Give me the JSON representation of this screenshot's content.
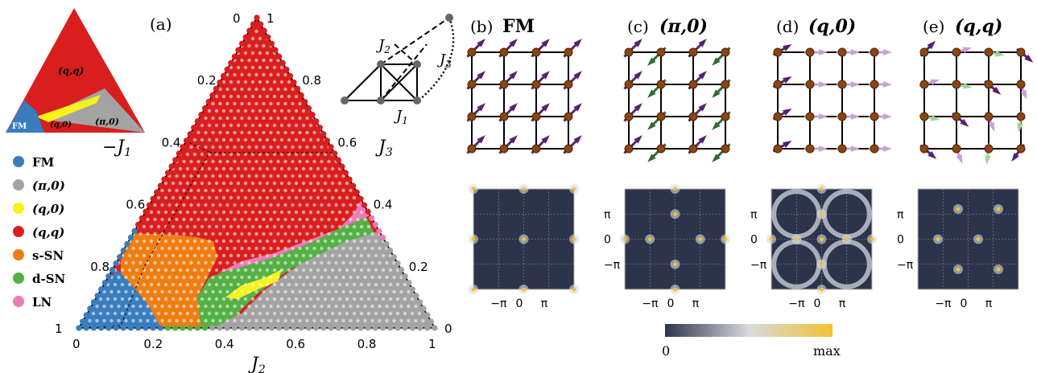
{
  "colors": {
    "FM": "#3a7dbf",
    "pi0": "#a3a3a3",
    "q0": "#f6f21a",
    "qq": "#d91e1e",
    "sSN": "#ee7d12",
    "dSN": "#55b046",
    "LN": "#ee7ab6",
    "cmap_low": "#2b344a",
    "cmap_mid": "#d9d9e0",
    "cmap_high": "#f2c230",
    "spin_purple": "#55226e",
    "spin_light": "#c8a0d6",
    "spin_green": "#2e6b35",
    "spin_lightgreen": "#9fd39a",
    "site": "#8b4513"
  },
  "legend": {
    "items": [
      {
        "key": "FM",
        "label": "FM"
      },
      {
        "key": "pi0",
        "label": "(π,0)"
      },
      {
        "key": "q0",
        "label": "(q,0)"
      },
      {
        "key": "qq",
        "label": "(q,q)"
      },
      {
        "key": "sSN",
        "label": "s-SN"
      },
      {
        "key": "dSN",
        "label": "d-SN"
      },
      {
        "key": "LN",
        "label": "LN"
      }
    ]
  },
  "inset": {
    "labels": {
      "qq": "(q,q)",
      "FM": "FM",
      "q0": "(q,0)",
      "pi0": "(π,0)"
    },
    "lattice_labels": {
      "J1": "J",
      "J2": "J",
      "J3": "J",
      "sub1": "1",
      "sub2": "2",
      "sub3": "3"
    }
  },
  "chart_data": [
    {
      "type": "ternary-phase-diagram",
      "panel_label": "(a)",
      "axis_labels": {
        "bottom": "J",
        "bottom_sub": "2",
        "left": "−J",
        "left_sub": "1",
        "right": "J",
        "right_sub": "3"
      },
      "bottom_ticks": [
        "0",
        "0.2",
        "0.4",
        "0.6",
        "0.8",
        "1"
      ],
      "left_ticks": [
        "1",
        "0.8",
        "0.6",
        "0.4",
        "0.2",
        "0"
      ],
      "right_ticks": [
        "1",
        "0.8",
        "0.6",
        "0.4",
        "0.2",
        "0"
      ],
      "phases": [
        "FM",
        "(π,0)",
        "(q,0)",
        "(q,q)",
        "s-SN",
        "d-SN",
        "LN"
      ]
    },
    {
      "type": "spin-configurations",
      "panels": [
        {
          "label": "(b)",
          "title": "FM"
        },
        {
          "label": "(c)",
          "title": "(π,0)"
        },
        {
          "label": "(d)",
          "title": "(q,0)"
        },
        {
          "label": "(e)",
          "title": "(q,q)"
        }
      ]
    },
    {
      "type": "heatmap",
      "description_tick_x": [
        "−π",
        "0",
        "π"
      ],
      "description_tick_y": [
        "π",
        "0",
        "−π"
      ],
      "colorbar": {
        "min_label": "0",
        "max_label": "max"
      }
    }
  ]
}
